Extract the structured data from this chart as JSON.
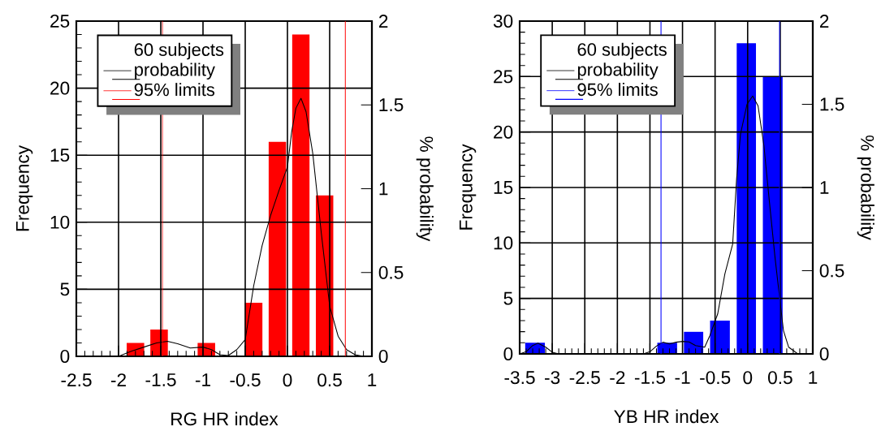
{
  "chart_data": [
    {
      "type": "histogram",
      "xlabel": "RG HR index",
      "ylabel": "Frequency",
      "y2label": "% probability",
      "legend_title": "60 subjects",
      "bins": [
        -1.94,
        -1.66,
        -1.38,
        -1.1,
        -0.82,
        -0.54,
        -0.26,
        0.02,
        0.3,
        0.58
      ],
      "values": [
        1,
        2,
        0,
        1,
        0,
        4,
        16,
        24,
        12
      ],
      "color": "#ff0000",
      "xlim": [
        -2.5,
        1
      ],
      "xticks": [
        -2.5,
        -2,
        -1.5,
        -1,
        -0.5,
        0,
        0.5,
        1
      ],
      "ylim": [
        0,
        25
      ],
      "yticks": [
        0,
        5,
        10,
        15,
        20,
        25
      ],
      "y2lim": [
        0,
        2
      ],
      "y2ticks": [
        0,
        0.5,
        1,
        1.5,
        2
      ],
      "grid": true,
      "legend": "top left",
      "ref_lines": [
        {
          "axis": "x",
          "value": -1.48,
          "label": "95% limits",
          "color": "#ff0000"
        },
        {
          "axis": "x",
          "value": 0.685,
          "color": "#ff0000"
        }
      ],
      "series": [
        {
          "type": "line",
          "name": "probability",
          "color": "#000000",
          "axis": "y2",
          "x": [
            -2.5,
            -2.0,
            -1.85,
            -1.7,
            -1.55,
            -1.42,
            -1.3,
            -1.15,
            -1.0,
            -0.9,
            -0.8,
            -0.7,
            -0.6,
            -0.5,
            -0.4,
            -0.3,
            -0.2,
            -0.1,
            0,
            0.05,
            0.1,
            0.16,
            0.22,
            0.3,
            0.4,
            0.5,
            0.6,
            0.7,
            0.8,
            0.9,
            1
          ],
          "values": [
            0,
            0,
            0.03,
            0.055,
            0.08,
            0.09,
            0.075,
            0.05,
            0.055,
            0.04,
            0.01,
            0.005,
            0.04,
            0.1,
            0.42,
            0.66,
            0.84,
            0.99,
            1.13,
            1.34,
            1.48,
            1.54,
            1.46,
            1.21,
            0.74,
            0.3,
            0.12,
            0.04,
            0.01,
            0,
            0
          ]
        }
      ]
    },
    {
      "type": "histogram",
      "xlabel": "YB HR index",
      "ylabel": "Frequency",
      "y2label": "% probability",
      "legend_title": "60 subjects",
      "bins": [
        -3.47,
        -3.06,
        -1.44,
        -1.03,
        -0.63,
        -0.22,
        0.18,
        0.59
      ],
      "values": [
        1,
        0,
        1,
        2,
        3,
        28,
        25
      ],
      "color": "#0000ff",
      "xlim": [
        -3.5,
        1
      ],
      "xticks": [
        -3.5,
        -3,
        -2.5,
        -2,
        -1.5,
        -1,
        -0.5,
        0,
        0.5,
        1
      ],
      "ylim": [
        0,
        30
      ],
      "yticks": [
        0,
        5,
        10,
        15,
        20,
        25,
        30
      ],
      "y2lim": [
        0,
        2
      ],
      "y2ticks": [
        0,
        0.5,
        1,
        1.5,
        2
      ],
      "grid": true,
      "legend": "top left",
      "ref_lines": [
        {
          "axis": "x",
          "value": -1.33,
          "label": "95% limits",
          "color": "#0000ff"
        },
        {
          "axis": "x",
          "value": 0.49,
          "color": "#0000ff"
        }
      ],
      "series": [
        {
          "type": "line",
          "name": "probability",
          "color": "#000000",
          "axis": "y2",
          "x": [
            -3.5,
            -3.4,
            -3.3,
            -3.22,
            -3.1,
            -3.0,
            -2.9,
            -1.6,
            -1.5,
            -1.4,
            -1.3,
            -1.2,
            -1.1,
            -1.0,
            -0.9,
            -0.8,
            -0.66,
            -0.58,
            -0.46,
            -0.35,
            -0.23,
            -0.17,
            -0.11,
            -0.01,
            0.077,
            0.16,
            0.25,
            0.33,
            0.42,
            0.49,
            0.55,
            0.63,
            0.77,
            1
          ],
          "values": [
            0,
            0.013,
            0.05,
            0.065,
            0.04,
            0.01,
            0,
            0,
            0.013,
            0.047,
            0.07,
            0.06,
            0.07,
            0.075,
            0.072,
            0.05,
            0.04,
            0.11,
            0.24,
            0.48,
            0.66,
            1.05,
            1.32,
            1.5,
            1.55,
            1.49,
            1.25,
            0.93,
            0.58,
            0.34,
            0.14,
            0.04,
            0,
            0
          ]
        }
      ]
    }
  ]
}
